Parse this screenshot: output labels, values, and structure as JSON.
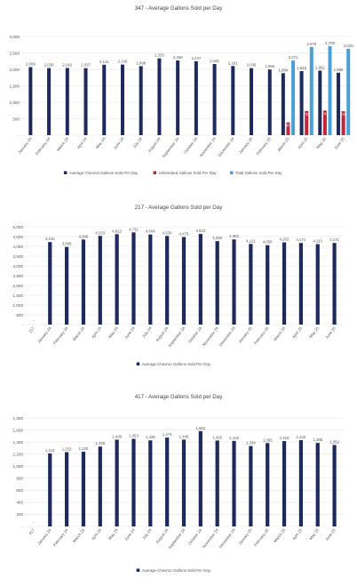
{
  "colors": {
    "chevron": "#1c2a5e",
    "unbranded": "#c0273a",
    "total": "#4a9fd5",
    "grid": "#e4e4e4",
    "text": "#555555"
  },
  "chart_data": [
    {
      "type": "bar",
      "title": "347 - Average Gallons Sold per Day",
      "ylim": [
        0,
        3000
      ],
      "yticks": [
        "-",
        "500",
        "1,000",
        "1,500",
        "2,000",
        "2,500",
        "3,000"
      ],
      "categories": [
        "January 24",
        "February 24",
        "March 24",
        "April 24",
        "May 24",
        "June 24",
        "July 24",
        "August 24",
        "September 24",
        "October 24",
        "November 24",
        "December 24",
        "January 25",
        "February 25",
        "March 25",
        "April 25",
        "May 25",
        "June 25"
      ],
      "series": [
        {
          "name": "Average Chevron Gallons Sold Per Day",
          "color": "chevron",
          "values": [
            2069,
            2039,
            2042,
            2037,
            2141,
            2146,
            2098,
            2333,
            2269,
            2247,
            2162,
            2101,
            2036,
            1996,
            1884,
            1946,
            1962,
            1898
          ],
          "labels": [
            "2,069",
            "2,039",
            "2,042",
            "2,037",
            "2,141",
            "2,146",
            "2,098",
            "2,333",
            "2,269",
            "2,247",
            "2,162",
            "2,101",
            "2,036",
            "1,996",
            "1,884",
            "1,946",
            "1,962",
            "1,898"
          ]
        },
        {
          "name": "Unbranded Gallons Sold Per Day",
          "color": "unbranded",
          "values": [
            null,
            null,
            null,
            null,
            null,
            null,
            null,
            null,
            null,
            null,
            null,
            null,
            null,
            null,
            387,
            733,
            747,
            728
          ],
          "labels": [
            "",
            "",
            "",
            "",
            "",
            "",
            "",
            "",
            "",
            "",
            "",
            "",
            "",
            "",
            "387",
            "733",
            "747",
            "728"
          ]
        },
        {
          "name": "Total Gallons Sold Per Day",
          "color": "total",
          "values": [
            null,
            null,
            null,
            null,
            null,
            null,
            null,
            null,
            null,
            null,
            null,
            null,
            null,
            null,
            2271,
            2679,
            2709,
            2626
          ],
          "labels": [
            "",
            "",
            "",
            "",
            "",
            "",
            "",
            "",
            "",
            "",
            "",
            "",
            "",
            "",
            "2,271",
            "2,679",
            "2,709",
            "2,626"
          ]
        }
      ]
    },
    {
      "type": "bar",
      "title": "217 - Average Gallons Sold per Day",
      "ylim": [
        0,
        5000
      ],
      "yticks": [
        "-",
        "500",
        "1,000",
        "1,500",
        "2,000",
        "2,500",
        "3,000",
        "3,500",
        "4,000",
        "4,500",
        "5,000"
      ],
      "categories": [
        "217",
        "January 24",
        "February 24",
        "March 24",
        "April 24",
        "May 24",
        "June 24",
        "July 24",
        "August 24",
        "September 24",
        "October 24",
        "November 24",
        "December 24",
        "January 25",
        "February 25",
        "March 25",
        "April 25",
        "May 25",
        "June 25"
      ],
      "series": [
        {
          "name": "Average Chevron Gallons Sold Per Day",
          "color": "chevron",
          "values": [
            0,
            4216,
            3968,
            4346,
            4533,
            4622,
            4711,
            4604,
            4530,
            4476,
            4633,
            4266,
            4353,
            4121,
            4058,
            4202,
            4171,
            4113,
            4171
          ],
          "labels": [
            "-",
            "4,216",
            "3,968",
            "4,346",
            "4,533",
            "4,622",
            "4,711",
            "4,604",
            "4,530",
            "4,476",
            "4,633",
            "4,266",
            "4,353",
            "4,121",
            "4,058",
            "4,202",
            "4,171",
            "4,113",
            "4,171"
          ]
        }
      ]
    },
    {
      "type": "bar",
      "title": "417 - Average Gallons Sold per Day",
      "ylim": [
        0,
        1800
      ],
      "yticks": [
        "-",
        "200",
        "400",
        "600",
        "800",
        "1,000",
        "1,200",
        "1,400",
        "1,600",
        "1,800"
      ],
      "categories": [
        "417",
        "January 24",
        "February 24",
        "March 24",
        "April 24",
        "May 24",
        "June 24",
        "July 24",
        "August 24",
        "September 24",
        "October 24",
        "November 24",
        "December 24",
        "January 25",
        "February 25",
        "March 25",
        "April 25",
        "May 25",
        "June 25"
      ],
      "series": [
        {
          "name": "Average Chevron Gallons Sold Per Day",
          "color": "chevron",
          "values": [
            0,
            1212,
            1233,
            1240,
            1325,
            1439,
            1453,
            1428,
            1474,
            1440,
            1582,
            1425,
            1419,
            1334,
            1383,
            1416,
            1432,
            1385,
            1352
          ],
          "labels": [
            "-",
            "1,212",
            "1,233",
            "1,240",
            "1,325",
            "1,439",
            "1,453",
            "1,428",
            "1,474",
            "1,440",
            "1,582",
            "1,425",
            "1,419",
            "1,334",
            "1,383",
            "1,416",
            "1,432",
            "1,385",
            "1,352"
          ]
        }
      ]
    }
  ]
}
